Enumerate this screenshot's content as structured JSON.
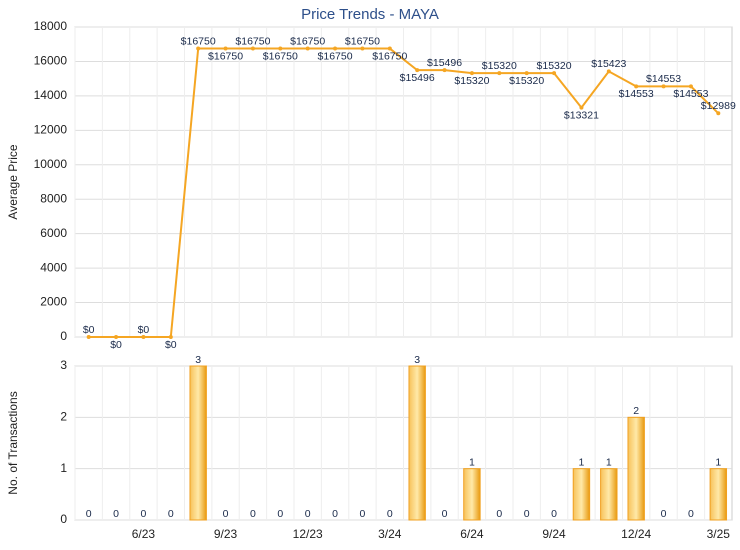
{
  "chart_data": [
    {
      "type": "line",
      "title": "Price Trends - MAYA",
      "y_label": "Average Price",
      "color": "#f5a623",
      "values": [
        0,
        0,
        0,
        0,
        16750,
        16750,
        16750,
        16750,
        16750,
        16750,
        16750,
        16750,
        15496,
        15496,
        15320,
        15320,
        15320,
        15320,
        13321,
        15423,
        14553,
        14553,
        14553,
        12989
      ],
      "value_labels": [
        "$0",
        "$0",
        "$0",
        "$0",
        "$16750",
        "$16750",
        "$16750",
        "$16750",
        "$16750",
        "$16750",
        "$16750",
        "$16750",
        "$15496",
        "$15496",
        "$15320",
        "$15320",
        "$15320",
        "$15320",
        "$13321",
        "$15423",
        "$14553",
        "$14553",
        "$14553",
        "$12989"
      ],
      "ylim": [
        0,
        18000
      ],
      "yticks": [
        0,
        2000,
        4000,
        6000,
        8000,
        10000,
        12000,
        14000,
        16000,
        18000
      ],
      "grid": true
    },
    {
      "type": "bar",
      "y_label": "No. of Transactions",
      "color": "#f0a020",
      "categories": [
        null,
        null,
        "6/23",
        null,
        null,
        "9/23",
        null,
        null,
        "12/23",
        null,
        null,
        "3/24",
        null,
        null,
        "6/24",
        null,
        null,
        "9/24",
        null,
        null,
        "12/24",
        null,
        null,
        "3/25"
      ],
      "values": [
        0,
        0,
        0,
        0,
        3,
        0,
        0,
        0,
        0,
        0,
        0,
        0,
        3,
        0,
        1,
        0,
        0,
        0,
        1,
        1,
        2,
        0,
        0,
        1
      ],
      "ylim": [
        0,
        3
      ],
      "yticks": [
        0,
        1,
        2,
        3
      ],
      "grid": true
    }
  ]
}
